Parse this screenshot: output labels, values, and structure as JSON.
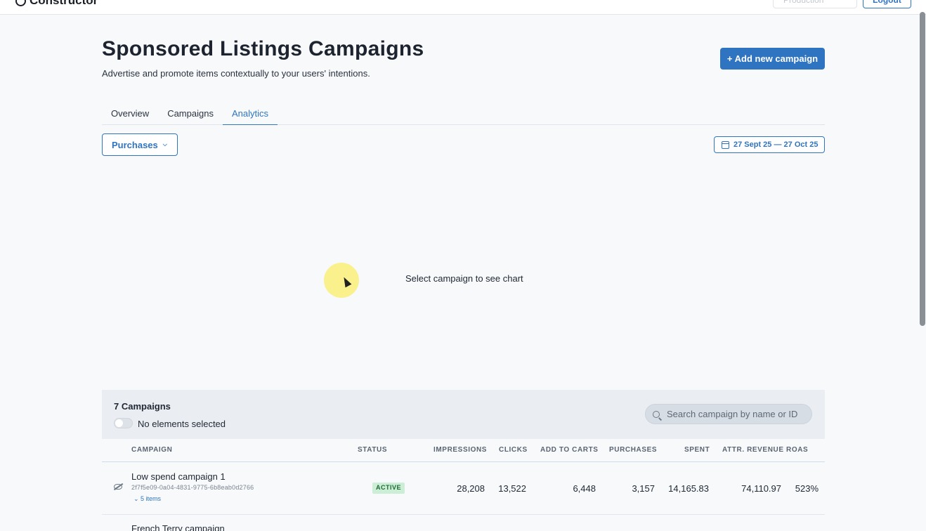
{
  "topbar": {
    "logo": "Constructor",
    "environment": "Production",
    "logout_label": "Logout"
  },
  "header": {
    "title": "Sponsored Listings Campaigns",
    "subtitle": "Advertise and promote items contextually to your users' intentions.",
    "add_button": "+ Add new campaign"
  },
  "tabs": [
    {
      "label": "Overview",
      "active": false
    },
    {
      "label": "Campaigns",
      "active": false
    },
    {
      "label": "Analytics",
      "active": true
    }
  ],
  "controls": {
    "metric": "Purchases",
    "date_range": "27 Sept 25 — 27 Oct 25"
  },
  "chart": {
    "empty_message": "Select campaign to see chart"
  },
  "table": {
    "count_label": "7 Campaigns",
    "selection_label": "No elements selected",
    "search_placeholder": "Search campaign by name or ID",
    "columns": [
      "CAMPAIGN",
      "STATUS",
      "IMPRESSIONS",
      "CLICKS",
      "ADD TO CARTS",
      "PURCHASES",
      "SPENT",
      "ATTR. REVENUE",
      "ROAS"
    ],
    "rows": [
      {
        "name": "Low spend campaign 1",
        "id": "2f7f5e09-0a04-4831-9775-6b8eab0d2766",
        "items": "5 items",
        "status": "ACTIVE",
        "impressions": "28,208",
        "clicks": "13,522",
        "add_to_carts": "6,448",
        "purchases": "3,157",
        "spent": "14,165.83",
        "attr_revenue": "74,110.97",
        "roas": "523%"
      },
      {
        "name": "French Terry campaign"
      }
    ]
  },
  "colors": {
    "accent": "#2f74c0",
    "active_badge_bg": "#cdeed6",
    "active_badge_text": "#1c6a31",
    "cursor_highlight": "#faf078"
  }
}
